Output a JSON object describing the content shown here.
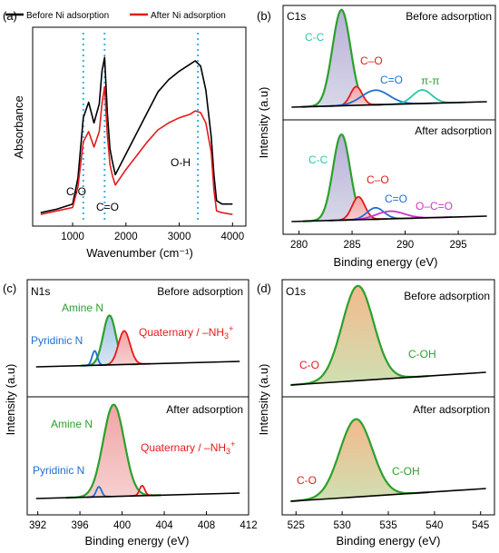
{
  "colors": {
    "black": "#000000",
    "red": "#e41a1c",
    "green": "#2ca02c",
    "blue": "#1f6fd1",
    "teal": "#2bc7a7",
    "magenta": "#cc33cc",
    "cyan": "#3aaee8",
    "fill_purple": "#b8b0d8",
    "fill_red": "#f0a8a8",
    "fill_orange": "#f0b890",
    "fill_blue": "#a8c8e8"
  },
  "chart_data": [
    {
      "panel": "(a)",
      "type": "line",
      "xlabel": "Wavenumber (cm⁻¹)",
      "ylabel": "Absorbance",
      "xlim": [
        250,
        4250
      ],
      "xticks": [
        "1000",
        "2000",
        "3000",
        "4000"
      ],
      "legend": {
        "placement": "top",
        "entries": [
          "Before Ni adsorption",
          "After Ni adsorption"
        ]
      },
      "annotations": [
        "C-O",
        "C=O",
        "O-H"
      ],
      "marker_lines_x": [
        1200,
        1600,
        3350
      ],
      "series": [
        {
          "name": "Before Ni adsorption",
          "color": "black",
          "x": [
            400,
            700,
            1000,
            1100,
            1200,
            1300,
            1400,
            1500,
            1550,
            1600,
            1650,
            1700,
            1750,
            1800,
            2000,
            2200,
            2400,
            2600,
            2800,
            3000,
            3200,
            3300,
            3400,
            3500,
            3600,
            3650,
            3700,
            3800,
            4000
          ],
          "y": [
            0.02,
            0.04,
            0.07,
            0.22,
            0.57,
            0.66,
            0.54,
            0.65,
            0.84,
            0.92,
            0.6,
            0.39,
            0.31,
            0.24,
            0.36,
            0.48,
            0.6,
            0.72,
            0.79,
            0.84,
            0.88,
            0.9,
            0.87,
            0.73,
            0.46,
            0.24,
            0.09,
            0.07,
            0.07
          ]
        },
        {
          "name": "After Ni adsorption",
          "color": "red",
          "x": [
            400,
            700,
            1000,
            1100,
            1200,
            1300,
            1400,
            1500,
            1550,
            1600,
            1650,
            1700,
            1750,
            1800,
            2000,
            2200,
            2400,
            2600,
            2800,
            3000,
            3200,
            3300,
            3400,
            3500,
            3600,
            3650,
            3700,
            3800,
            4000
          ],
          "y": [
            0.01,
            0.03,
            0.05,
            0.17,
            0.43,
            0.49,
            0.4,
            0.49,
            0.65,
            0.75,
            0.47,
            0.3,
            0.23,
            0.18,
            0.27,
            0.35,
            0.43,
            0.5,
            0.54,
            0.57,
            0.59,
            0.61,
            0.6,
            0.54,
            0.37,
            0.15,
            0.03,
            0.02,
            0.01
          ]
        }
      ]
    },
    {
      "panel": "(b)",
      "type": "area",
      "title": "C1s",
      "xlabel": "Binding energy (eV)",
      "ylabel": "Intensity (a.u)",
      "xlim": [
        278.5,
        298.5
      ],
      "xticks": [
        "280",
        "285",
        "290",
        "295"
      ],
      "subpanels": [
        {
          "condition": "Before adsorption",
          "peaks": [
            {
              "label": "C-C",
              "color": "green",
              "fill": "fill_purple",
              "center": 284.0,
              "height": 0.92,
              "width": 0.85
            },
            {
              "label": "C–O",
              "color": "red",
              "fill": "fill_red",
              "center": 285.4,
              "height": 0.18,
              "width": 0.55
            },
            {
              "label": "C=O",
              "color": "blue",
              "fill": "none",
              "center": 287.2,
              "height": 0.14,
              "width": 1.3
            },
            {
              "label": "π-π",
              "color": "teal",
              "fill": "none",
              "center": 291.6,
              "height": 0.13,
              "width": 0.9
            }
          ]
        },
        {
          "condition": "After adsorption",
          "peaks": [
            {
              "label": "C-C",
              "color": "green",
              "fill": "fill_purple",
              "center": 284.0,
              "height": 0.9,
              "width": 0.8
            },
            {
              "label": "C–O",
              "color": "red",
              "fill": "fill_red",
              "center": 285.6,
              "height": 0.24,
              "width": 0.6
            },
            {
              "label": "C=O",
              "color": "blue",
              "fill": "none",
              "center": 287.2,
              "height": 0.12,
              "width": 0.8
            },
            {
              "label": "O–C=O",
              "color": "magenta",
              "fill": "none",
              "center": 288.6,
              "height": 0.08,
              "width": 1.3
            }
          ]
        }
      ]
    },
    {
      "panel": "(c)",
      "type": "area",
      "title": "N1s",
      "xlabel": "Binding energy (eV)",
      "ylabel": "Intensity (a.u)",
      "xlim": [
        391,
        412
      ],
      "xticks": [
        "392",
        "396",
        "400",
        "404",
        "408",
        "412"
      ],
      "subpanels": [
        {
          "condition": "Before adsorption",
          "peaks": [
            {
              "label": "Amine N",
              "color": "green",
              "fill": "fill_blue",
              "center": 398.8,
              "height": 0.62,
              "width": 0.6
            },
            {
              "label": "Quaternary / –NH3+",
              "color": "red",
              "fill": "fill_red",
              "center": 400.2,
              "height": 0.42,
              "width": 0.55
            },
            {
              "label": "Pyridinic N",
              "color": "blue",
              "fill": "none",
              "center": 397.4,
              "height": 0.18,
              "width": 0.25
            }
          ]
        },
        {
          "condition": "After adsorption",
          "peaks": [
            {
              "label": "Amine N",
              "color": "green",
              "fill": "fill_red",
              "center": 399.2,
              "height": 0.92,
              "width": 1.0
            },
            {
              "label": "Quaternary / –NH3+",
              "color": "red",
              "fill": "none",
              "center": 401.9,
              "height": 0.1,
              "width": 0.25
            },
            {
              "label": "Pyridinic N",
              "color": "blue",
              "fill": "none",
              "center": 397.8,
              "height": 0.1,
              "width": 0.25
            }
          ]
        }
      ]
    },
    {
      "panel": "(d)",
      "type": "area",
      "title": "O1s",
      "xlabel": "Binding energy (eV)",
      "ylabel": "Intensity (a.u)",
      "xlim": [
        523.5,
        546.5
      ],
      "xticks": [
        "525",
        "530",
        "535",
        "540",
        "545"
      ],
      "subpanels": [
        {
          "condition": "Before adsorption",
          "annotations": [
            "C-O",
            "C-OH"
          ],
          "peaks": [
            {
              "label": "O1s",
              "color": "green",
              "fill": "fill_orange",
              "center": 531.7,
              "height": 0.95,
              "width": 1.7
            }
          ]
        },
        {
          "condition": "After adsorption",
          "annotations": [
            "C-O",
            "C-OH"
          ],
          "peaks": [
            {
              "label": "O1s",
              "color": "green",
              "fill": "fill_orange",
              "center": 531.5,
              "height": 0.78,
              "width": 1.75
            }
          ]
        }
      ]
    }
  ]
}
